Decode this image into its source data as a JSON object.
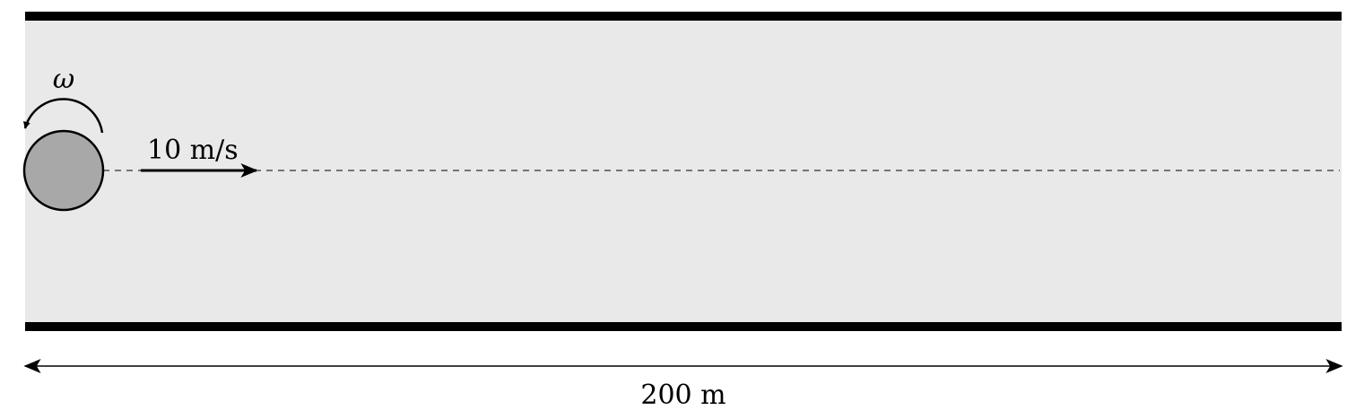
{
  "diagram": {
    "angular_velocity_symbol": "ω",
    "velocity_label": "10 m/s",
    "length_label": "200 m"
  },
  "colors": {
    "field": "#e9e9e9",
    "wall": "#000000",
    "ball_fill": "#a8a8a8",
    "ball_stroke": "#000000",
    "line": "#000000"
  }
}
